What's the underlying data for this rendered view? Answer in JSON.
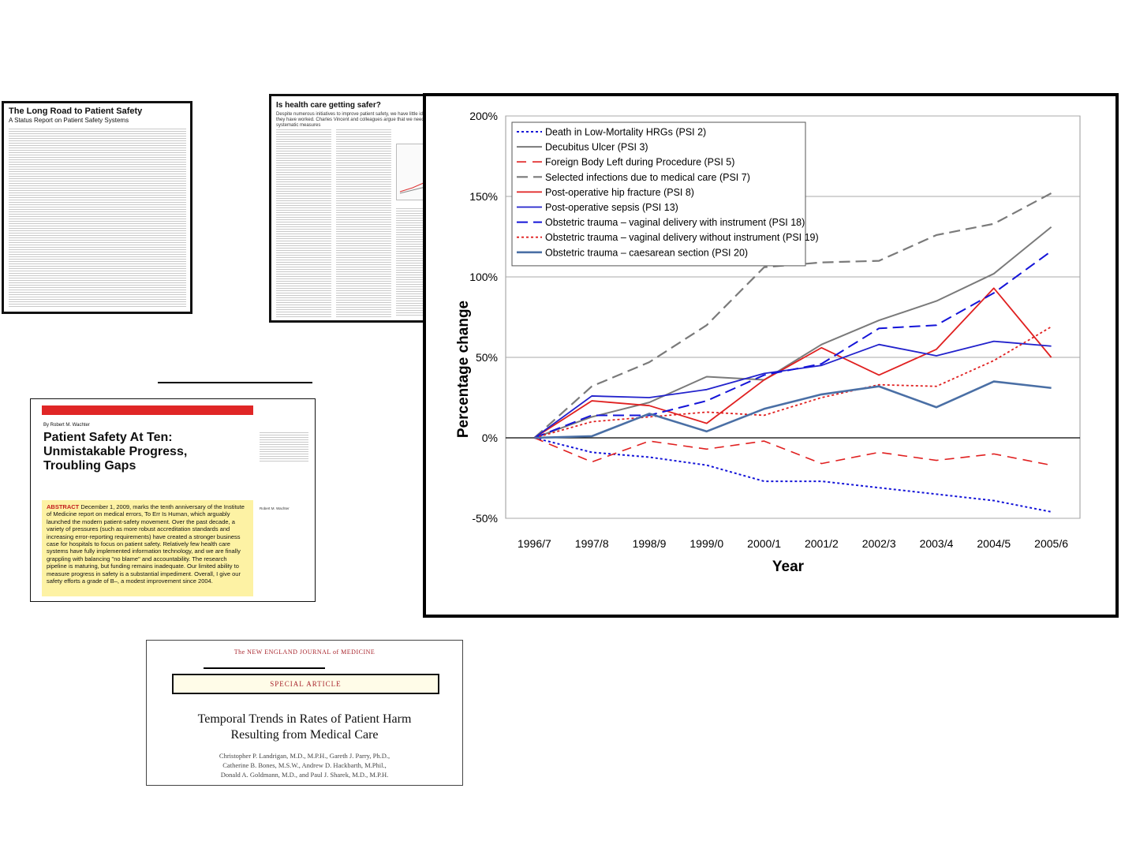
{
  "articles": {
    "jama": {
      "title": "The Long Road to Patient Safety",
      "subtitle": "A Status Report on Patient Safety Systems"
    },
    "bmj": {
      "title": "Is health care getting safer?",
      "subtitle": "Despite numerous initiatives to improve patient safety, we have little idea whether they have worked. Charles Vincent and colleagues argue that we need to develop systematic measures"
    },
    "health_affairs": {
      "byline": "By Robert M. Wachter",
      "title": "Patient Safety At Ten: Unmistakable Progress, Troubling Gaps",
      "abstract_label": "ABSTRACT",
      "abstract": "December 1, 2009, marks the tenth anniversary of the Institute of Medicine report on medical errors, To Err Is Human, which arguably launched the modern patient-safety movement. Over the past decade, a variety of pressures (such as more robust accreditation standards and increasing error-reporting requirements) have created a stronger business case for hospitals to focus on patient safety. Relatively few health care systems have fully implemented information technology, and we are finally grappling with balancing \"no blame\" and accountability. The research pipeline is maturing, but funding remains inadequate. Our limited ability to measure progress in safety is a substantial impediment. Overall, I give our safety efforts a grade of B–, a modest improvement since 2004.",
      "author": "Robert M. Wachter"
    },
    "nejm": {
      "journal": "The NEW ENGLAND JOURNAL of MEDICINE",
      "section": "SPECIAL ARTICLE",
      "title_line1": "Temporal Trends in Rates of Patient Harm",
      "title_line2": "Resulting from Medical Care",
      "authors_line1": "Christopher P. Landrigan, M.D., M.P.H., Gareth J. Parry, Ph.D.,",
      "authors_line2": "Catherine B. Bones, M.S.W., Andrew D. Hackbarth, M.Phil.,",
      "authors_line3": "Donald A. Goldmann, M.D., and Paul J. Sharek, M.D., M.P.H."
    }
  },
  "chart_data": {
    "type": "line",
    "xlabel": "Year",
    "ylabel": "Percentage change",
    "ylim": [
      -50,
      200
    ],
    "yticks": [
      -50,
      0,
      50,
      100,
      150,
      200
    ],
    "ytick_labels": [
      "-50%",
      "0%",
      "50%",
      "100%",
      "150%",
      "200%"
    ],
    "grid": true,
    "legend_position": "top-left",
    "categories": [
      "1996/7",
      "1997/8",
      "1998/9",
      "1999/0",
      "2000/1",
      "2001/2",
      "2002/3",
      "2003/4",
      "2004/5",
      "2005/6"
    ],
    "series": [
      {
        "name": "Death in Low-Mortality HRGs (PSI 2)",
        "color": "#1414d8",
        "dash": "dotted",
        "width": 2,
        "values": [
          0,
          -9,
          -12,
          -17,
          -27,
          -27,
          -31,
          -35,
          -39,
          -46
        ]
      },
      {
        "name": "Decubitus Ulcer (PSI 3)",
        "color": "#7a7a7a",
        "dash": "solid",
        "width": 2,
        "values": [
          0,
          13,
          22,
          38,
          36,
          58,
          73,
          85,
          102,
          131
        ]
      },
      {
        "name": "Foreign Body Left during Procedure (PSI 5)",
        "color": "#e02020",
        "dash": "dashed",
        "width": 1.6,
        "values": [
          0,
          -15,
          -2,
          -7,
          -2,
          -16,
          -9,
          -14,
          -10,
          -17
        ]
      },
      {
        "name": "Selected infections due to medical care (PSI 7)",
        "color": "#7a7a7a",
        "dash": "longdash",
        "width": 2.2,
        "values": [
          0,
          32,
          47,
          70,
          106,
          109,
          110,
          126,
          133,
          152
        ]
      },
      {
        "name": "Post-operative hip fracture (PSI 8)",
        "color": "#e02020",
        "dash": "solid",
        "width": 1.8,
        "values": [
          0,
          23,
          20,
          9,
          36,
          56,
          39,
          55,
          93,
          50
        ]
      },
      {
        "name": "Post-operative sepsis (PSI 13)",
        "color": "#2222cc",
        "dash": "solid",
        "width": 1.8,
        "values": [
          0,
          26,
          25,
          30,
          40,
          45,
          58,
          51,
          60,
          57
        ]
      },
      {
        "name": "Obstetric trauma – vaginal delivery with instrument (PSI 18)",
        "color": "#1414d8",
        "dash": "longdash",
        "width": 2,
        "values": [
          0,
          14,
          14,
          23,
          39,
          46,
          68,
          70,
          90,
          116
        ]
      },
      {
        "name": "Obstetric trauma – vaginal delivery without instrument (PSI 19)",
        "color": "#e02020",
        "dash": "dotted",
        "width": 1.8,
        "values": [
          0,
          10,
          13,
          16,
          14,
          25,
          33,
          32,
          48,
          69
        ]
      },
      {
        "name": "Obstetric trauma – caesarean section (PSI 20)",
        "color": "#4a6fa5",
        "dash": "solid",
        "width": 2.6,
        "values": [
          0,
          1,
          15,
          4,
          18,
          27,
          32,
          19,
          35,
          31
        ]
      }
    ]
  }
}
